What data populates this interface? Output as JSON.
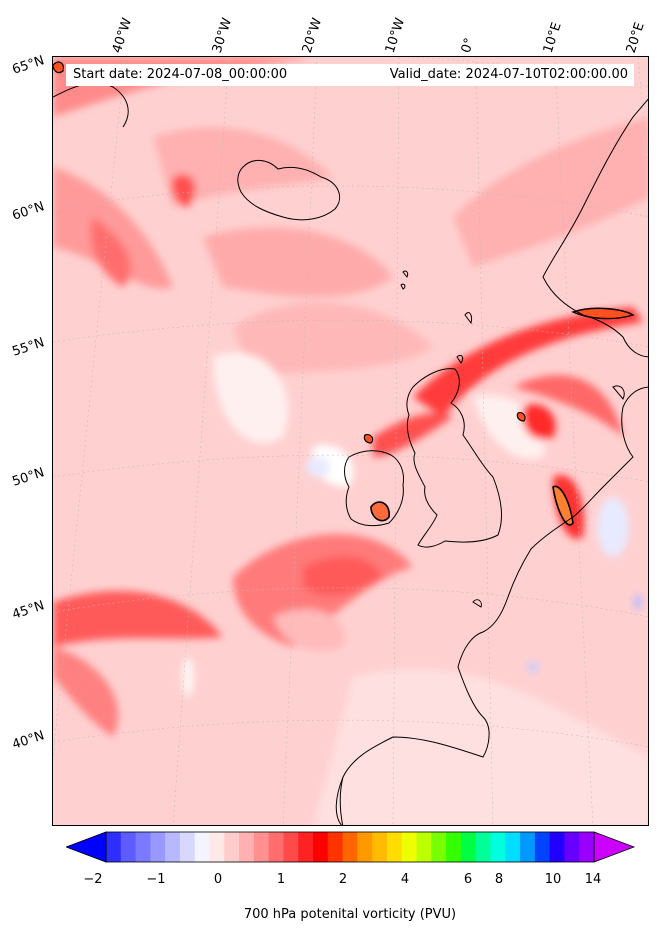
{
  "info": {
    "start_date": "Start date: 2024-07-08_00:00:00",
    "valid_date": "Valid_date: 2024-07-10T02:00:00.00"
  },
  "axes": {
    "longitude_labels": [
      "40°W",
      "30°W",
      "20°W",
      "10°W",
      "0°",
      "10°E",
      "20°E"
    ],
    "latitude_labels": [
      "65°N",
      "60°N",
      "55°N",
      "50°N",
      "45°N",
      "40°N"
    ]
  },
  "colorbar": {
    "label": "700 hPa potenital vorticity (PVU)",
    "tick_labels": [
      "−2",
      "−1",
      "0",
      "1",
      "2",
      "4",
      "6",
      "8",
      "10",
      "14"
    ],
    "colors": [
      "#0000ff",
      "#2e2eff",
      "#5c5cff",
      "#7a7aff",
      "#9898ff",
      "#b8b8ff",
      "#d8d8ff",
      "#f4f4ff",
      "#ffe8e8",
      "#ffcccc",
      "#ffb0b0",
      "#ff9090",
      "#ff6e6e",
      "#ff4a4a",
      "#ff2222",
      "#ff0000",
      "#ff3300",
      "#ff6600",
      "#ff9900",
      "#ffbb00",
      "#ffdd00",
      "#eeff00",
      "#bbff00",
      "#77ff00",
      "#33ff00",
      "#00ff44",
      "#00ff99",
      "#00ffdd",
      "#00ddff",
      "#0099ff",
      "#0044ff",
      "#2200ff",
      "#6600ff",
      "#9900ff",
      "#cc00ff"
    ],
    "extend": "both"
  },
  "map": {
    "projection": "lambert-conformal",
    "field": "700 hPa potential vorticity",
    "coastline_color": "#000000"
  }
}
